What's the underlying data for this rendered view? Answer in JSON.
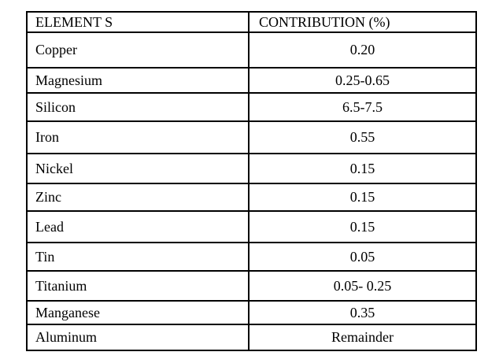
{
  "colors": {
    "background": "#ffffff",
    "border": "#000000",
    "text": "#000000"
  },
  "table": {
    "headers": {
      "element": "ELEMENT S",
      "contribution": "CONTRIBUTION (%)"
    },
    "rows": [
      {
        "element": "Copper",
        "contribution": "0.20"
      },
      {
        "element": "Magnesium",
        "contribution": "0.25-0.65"
      },
      {
        "element": "Silicon",
        "contribution": "6.5-7.5"
      },
      {
        "element": "Iron",
        "contribution": "0.55"
      },
      {
        "element": "Nickel",
        "contribution": "0.15"
      },
      {
        "element": "Zinc",
        "contribution": "0.15"
      },
      {
        "element": "Lead",
        "contribution": "0.15"
      },
      {
        "element": "Tin",
        "contribution": "0.05"
      },
      {
        "element": "Titanium",
        "contribution": "0.05- 0.25"
      },
      {
        "element": "Manganese",
        "contribution": "0.35"
      },
      {
        "element": "Aluminum",
        "contribution": "Remainder"
      }
    ]
  }
}
